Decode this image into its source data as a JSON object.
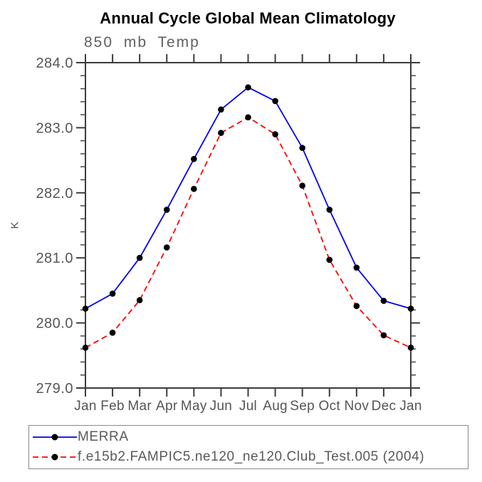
{
  "page": {
    "background": "#ffffff"
  },
  "chart_data": {
    "type": "line",
    "title": "Annual Cycle Global Mean Climatology",
    "subtitle": "850 mb Temp",
    "xlabel": "",
    "ylabel": "K",
    "x_tick_labels": [
      "Jan",
      "Feb",
      "Mar",
      "Apr",
      "May",
      "Jun",
      "Jul",
      "Aug",
      "Sep",
      "Oct",
      "Nov",
      "Dec",
      "Jan"
    ],
    "ylim": [
      279.0,
      284.0
    ],
    "y_major_step": 1.0,
    "y_minor_step": 0.2,
    "y_tick_labels": [
      "279.0",
      "280.0",
      "281.0",
      "282.0",
      "283.0",
      "284.0"
    ],
    "grid": false,
    "legend_position": "bottom-left-box",
    "marker": "filled-circle",
    "marker_color": "#000000",
    "axis_color": "#3c3c3c",
    "label_color": "#555555",
    "series": [
      {
        "name": "MERRA",
        "color": "#0000ee",
        "style": "solid",
        "values": [
          280.22,
          280.45,
          281.0,
          281.74,
          282.52,
          283.28,
          283.62,
          283.41,
          282.69,
          281.74,
          280.85,
          280.34,
          280.22
        ]
      },
      {
        "name": "f.e15b2.FAMPIC5.ne120_ne120.Club_Test.005 (2004)",
        "color": "#ff0000",
        "style": "dashed",
        "values": [
          279.62,
          279.85,
          280.35,
          281.16,
          282.06,
          282.92,
          283.16,
          282.9,
          282.11,
          280.97,
          280.26,
          279.81,
          279.62
        ]
      }
    ]
  }
}
